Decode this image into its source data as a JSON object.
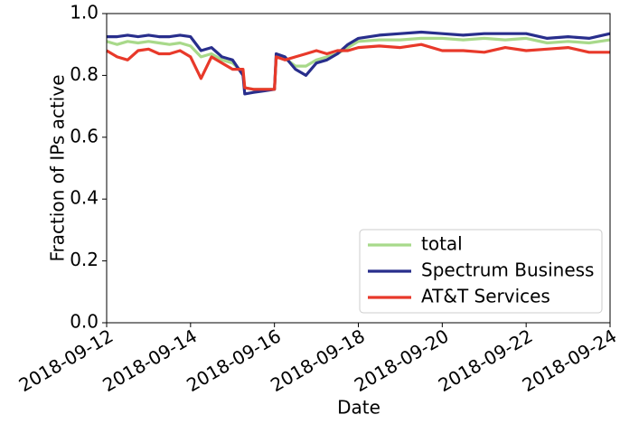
{
  "chart_data": {
    "type": "line",
    "xlabel": "Date",
    "ylabel": "Fraction of IPs active",
    "x": [
      "2018-09-12 00:00",
      "2018-09-12 06:00",
      "2018-09-12 12:00",
      "2018-09-12 18:00",
      "2018-09-13 00:00",
      "2018-09-13 06:00",
      "2018-09-13 12:00",
      "2018-09-13 18:00",
      "2018-09-14 00:00",
      "2018-09-14 06:00",
      "2018-09-14 12:00",
      "2018-09-14 18:00",
      "2018-09-15 00:00",
      "2018-09-15 06:00",
      "2018-09-15 07:00",
      "2018-09-15 12:00",
      "2018-09-15 18:00",
      "2018-09-16 00:00",
      "2018-09-16 01:00",
      "2018-09-16 06:00",
      "2018-09-16 12:00",
      "2018-09-16 18:00",
      "2018-09-17 00:00",
      "2018-09-17 06:00",
      "2018-09-17 12:00",
      "2018-09-17 18:00",
      "2018-09-18 00:00",
      "2018-09-18 12:00",
      "2018-09-19 00:00",
      "2018-09-19 12:00",
      "2018-09-20 00:00",
      "2018-09-20 12:00",
      "2018-09-21 00:00",
      "2018-09-21 12:00",
      "2018-09-22 00:00",
      "2018-09-22 12:00",
      "2018-09-23 00:00",
      "2018-09-23 12:00",
      "2018-09-24 00:00"
    ],
    "series": [
      {
        "name": "total",
        "color": "#a8d98a",
        "values": [
          0.91,
          0.9,
          0.91,
          0.905,
          0.91,
          0.905,
          0.9,
          0.905,
          0.895,
          0.86,
          0.87,
          0.85,
          0.84,
          0.81,
          0.76,
          0.755,
          0.755,
          0.755,
          0.86,
          0.855,
          0.83,
          0.83,
          0.85,
          0.86,
          0.87,
          0.89,
          0.91,
          0.915,
          0.915,
          0.92,
          0.92,
          0.915,
          0.92,
          0.915,
          0.92,
          0.905,
          0.91,
          0.905,
          0.915
        ]
      },
      {
        "name": "Spectrum Business",
        "color": "#282e8c",
        "values": [
          0.925,
          0.925,
          0.93,
          0.925,
          0.93,
          0.925,
          0.925,
          0.93,
          0.925,
          0.88,
          0.89,
          0.86,
          0.85,
          0.8,
          0.74,
          0.745,
          0.75,
          0.755,
          0.87,
          0.86,
          0.82,
          0.8,
          0.84,
          0.85,
          0.87,
          0.9,
          0.92,
          0.93,
          0.935,
          0.94,
          0.935,
          0.93,
          0.935,
          0.935,
          0.935,
          0.92,
          0.925,
          0.92,
          0.935
        ]
      },
      {
        "name": "AT&T Services",
        "color": "#e8392a",
        "values": [
          0.88,
          0.86,
          0.85,
          0.88,
          0.885,
          0.87,
          0.87,
          0.88,
          0.86,
          0.79,
          0.86,
          0.84,
          0.82,
          0.82,
          0.76,
          0.755,
          0.755,
          0.755,
          0.86,
          0.85,
          0.86,
          0.87,
          0.88,
          0.87,
          0.88,
          0.88,
          0.89,
          0.895,
          0.89,
          0.9,
          0.88,
          0.88,
          0.875,
          0.89,
          0.88,
          0.885,
          0.89,
          0.875,
          0.875
        ]
      }
    ],
    "xlim": [
      "2018-09-12",
      "2018-09-24"
    ],
    "xticks": [
      "2018-09-12",
      "2018-09-14",
      "2018-09-16",
      "2018-09-18",
      "2018-09-20",
      "2018-09-22",
      "2018-09-24"
    ],
    "ylim": [
      0,
      1
    ],
    "yticks": [
      {
        "value": 0,
        "label": "0.0"
      },
      0.2,
      0.4,
      0.6,
      0.8,
      {
        "value": 1,
        "label": "1.0"
      }
    ],
    "legend": "lower right"
  }
}
